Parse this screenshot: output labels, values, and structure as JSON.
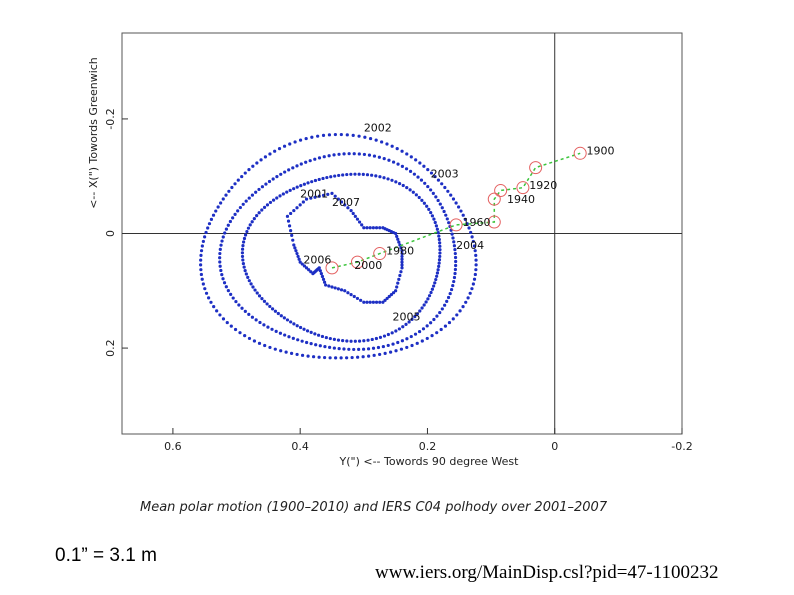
{
  "chart_data": {
    "type": "scatter",
    "xlabel": "Y(\") <-- Towords 90 degree West",
    "ylabel": "<-- X(\") Towords Greenwich",
    "xlim": [
      0.68,
      -0.2
    ],
    "ylim": [
      -0.35,
      0.35
    ],
    "x_ticks": [
      "0.6",
      "0.4",
      "0.2",
      "0",
      "-0.2"
    ],
    "y_ticks": [
      "-0.2",
      "0",
      "0.2"
    ],
    "mean_pole": {
      "points": [
        {
          "x": 0.35,
          "y": 0.06
        },
        {
          "x": 0.31,
          "y": 0.05
        },
        {
          "x": 0.275,
          "y": 0.035
        },
        {
          "x": 0.155,
          "y": -0.015
        },
        {
          "x": 0.095,
          "y": -0.02
        },
        {
          "x": 0.095,
          "y": -0.06
        },
        {
          "x": 0.085,
          "y": -0.075
        },
        {
          "x": 0.05,
          "y": -0.08
        },
        {
          "x": 0.03,
          "y": -0.115
        },
        {
          "x": -0.04,
          "y": -0.14
        }
      ],
      "labels": [
        {
          "text": "1900",
          "x": -0.05,
          "y": -0.145
        },
        {
          "text": "1920",
          "x": 0.04,
          "y": -0.085
        },
        {
          "text": "1940",
          "x": 0.075,
          "y": -0.06
        },
        {
          "text": "1960",
          "x": 0.145,
          "y": -0.02
        },
        {
          "text": "1980",
          "x": 0.265,
          "y": 0.03
        },
        {
          "text": "2000",
          "x": 0.315,
          "y": 0.055
        }
      ]
    },
    "polhody_labels": [
      {
        "text": "2002",
        "x": 0.3,
        "y": -0.185
      },
      {
        "text": "2003",
        "x": 0.195,
        "y": -0.105
      },
      {
        "text": "2001",
        "x": 0.4,
        "y": -0.07
      },
      {
        "text": "2007",
        "x": 0.35,
        "y": -0.055
      },
      {
        "text": "2004",
        "x": 0.155,
        "y": 0.02
      },
      {
        "text": "2006",
        "x": 0.395,
        "y": 0.045
      },
      {
        "text": "2005",
        "x": 0.255,
        "y": 0.145
      }
    ],
    "polhody_loops": [
      {
        "cx": 0.34,
        "cy": 0.03,
        "rx": 0.215,
        "ry": 0.195
      },
      {
        "cx": 0.335,
        "cy": 0.035,
        "rx": 0.185,
        "ry": 0.17
      },
      {
        "cx": 0.33,
        "cy": 0.04,
        "rx": 0.155,
        "ry": 0.145
      }
    ],
    "colors": {
      "polhody": "#1d2fc4",
      "mean_pole": "#3cc43c",
      "circle": "#e46060"
    }
  },
  "caption": "Mean polar motion (1900–2010) and IERS C04 polhody over 2001–2007",
  "scale_note": "0.1” = 3.1 m",
  "source_url": "www.iers.org/MainDisp.csl?pid=47-1100232"
}
